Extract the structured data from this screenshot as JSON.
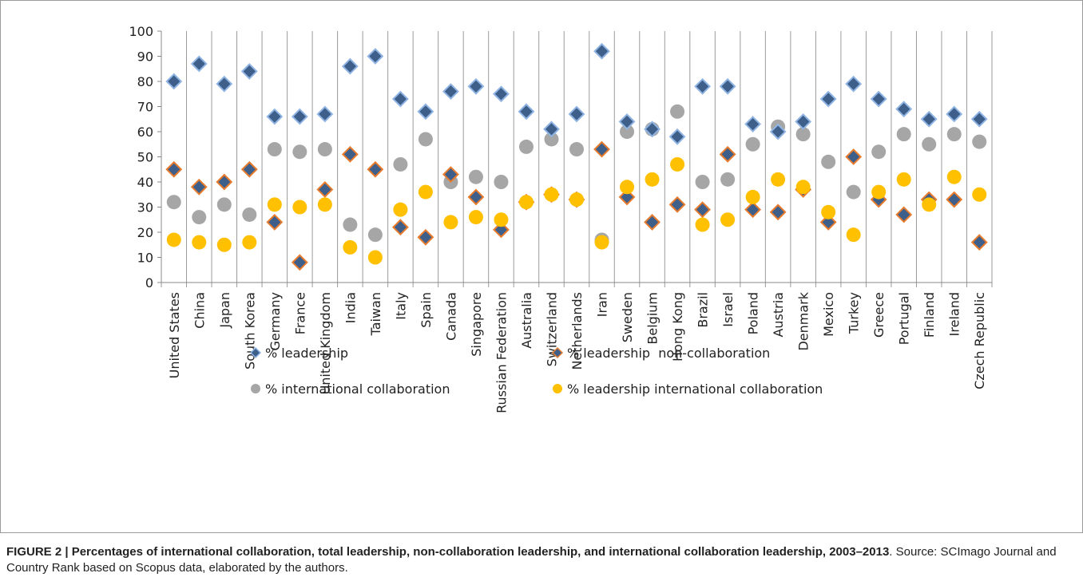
{
  "chart_data": {
    "type": "scatter",
    "categories": [
      "United States",
      "China",
      "Japan",
      "South Korea",
      "Germany",
      "France",
      "United Kingdom",
      "India",
      "Taiwan",
      "Italy",
      "Spain",
      "Canada",
      "Singapore",
      "Russian Federation",
      "Australia",
      "Switzerland",
      "Netherlands",
      "Iran",
      "Sweden",
      "Belgium",
      "Hong Kong",
      "Brazil",
      "Israel",
      "Poland",
      "Austria",
      "Denmark",
      "Mexico",
      "Turkey",
      "Greece",
      "Portugal",
      "Finland",
      "Ireland",
      "Czech Republic"
    ],
    "ylim": [
      0,
      100
    ],
    "yticks": [
      0,
      10,
      20,
      30,
      40,
      50,
      60,
      70,
      80,
      90,
      100
    ],
    "series": [
      {
        "name": "% international collaboration",
        "color": "#a6a6a6",
        "marker": "circle",
        "values": [
          32,
          26,
          31,
          27,
          53,
          52,
          53,
          23,
          19,
          47,
          57,
          40,
          42,
          40,
          54,
          57,
          53,
          17,
          60,
          61,
          68,
          40,
          41,
          55,
          62,
          59,
          48,
          36,
          52,
          59,
          55,
          59,
          56
        ]
      },
      {
        "name": "% leadership  non-collaboration",
        "color": "#3e5f8a",
        "edge": "#e87b2c",
        "marker": "diamond",
        "values": [
          45,
          38,
          40,
          45,
          24,
          8,
          37,
          51,
          45,
          22,
          18,
          43,
          34,
          21,
          32,
          35,
          33,
          53,
          34,
          24,
          31,
          29,
          51,
          29,
          28,
          37,
          24,
          50,
          33,
          27,
          33,
          33,
          16
        ]
      },
      {
        "name": "% leadership",
        "color": "#3e5f8a",
        "edge": "#8fb4e3",
        "marker": "diamond",
        "values": [
          80,
          87,
          79,
          84,
          66,
          66,
          67,
          86,
          90,
          73,
          68,
          76,
          78,
          75,
          68,
          61,
          67,
          92,
          64,
          61,
          58,
          78,
          78,
          63,
          60,
          64,
          73,
          79,
          73,
          69,
          65,
          67,
          65
        ]
      },
      {
        "name": "% leadership international collaboration",
        "color": "#ffc000",
        "marker": "circle",
        "values": [
          17,
          16,
          15,
          16,
          31,
          30,
          31,
          14,
          10,
          29,
          36,
          24,
          26,
          25,
          32,
          35,
          33,
          16,
          38,
          41,
          47,
          23,
          25,
          34,
          41,
          38,
          28,
          19,
          36,
          41,
          31,
          42,
          35
        ]
      }
    ],
    "legend_order": [
      2,
      1,
      0,
      3
    ]
  },
  "caption": {
    "bold": "FIGURE 2 | Percentages of international collaboration, total leadership, non-collaboration leadership, and international collaboration leadership, 2003–2013",
    "text": ". Source: SCImago Journal and Country Rank based on Scopus data, elaborated by the authors."
  }
}
